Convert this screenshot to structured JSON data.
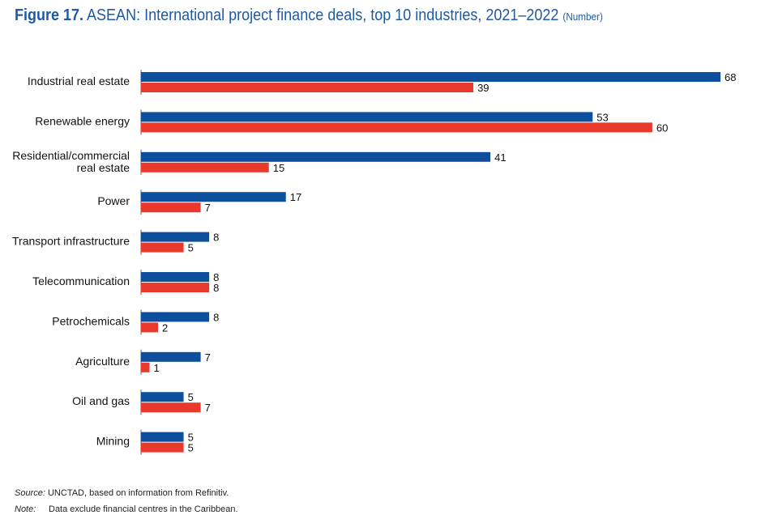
{
  "figure": {
    "number": "Figure 17.",
    "title": "ASEAN: International project finance deals, top 10 industries, 2021–2022",
    "unit": "(Number)"
  },
  "footer": {
    "source_label": "Source:",
    "source_text": "UNCTAD, based on information from Refinitiv.",
    "note_label": "Note:",
    "note_text": "Data exclude financial centres in the Caribbean."
  },
  "chart_data": {
    "type": "bar",
    "orientation": "horizontal",
    "categories": [
      "Industrial real estate",
      "Renewable energy",
      "Residential/commercial real estate",
      "Power",
      "Transport infrastructure",
      "Telecommunication",
      "Petrochemicals",
      "Agriculture",
      "Oil and gas",
      "Mining"
    ],
    "series": [
      {
        "values": [
          68,
          53,
          41,
          17,
          8,
          8,
          8,
          7,
          5,
          5
        ],
        "color": "#0d4f9c"
      },
      {
        "values": [
          39,
          60,
          15,
          7,
          5,
          8,
          2,
          1,
          7,
          5
        ],
        "color": "#e8392c"
      }
    ],
    "xlim": [
      0,
      68
    ],
    "grid": false,
    "legend": "none",
    "data_labels": true
  }
}
